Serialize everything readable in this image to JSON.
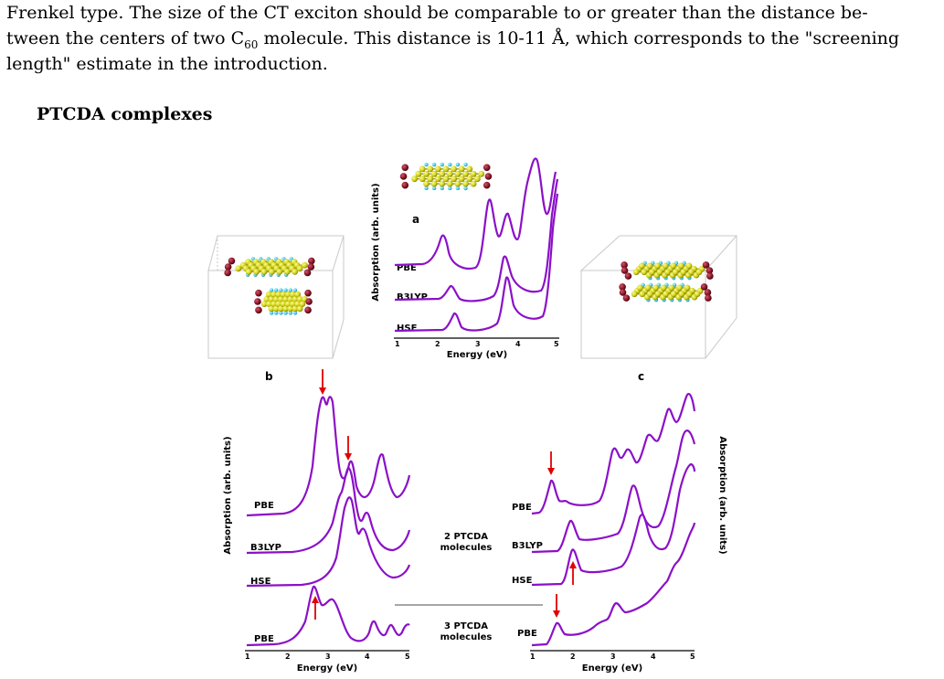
{
  "paragraph": {
    "line1": "Frenkel type. The size of the CT exciton should be comparable to or greater than the distance be-",
    "line2_pre": "tween the centers of two C",
    "line2_sub": "60",
    "line2_post": " molecule. This distance is 10-11 Å, which corresponds to the \"screening",
    "line3": "length\" estimate in the introduction."
  },
  "section_heading": "PTCDA complexes",
  "figure": {
    "panel_a": {
      "label": "a",
      "ylabel": "Absorption (arb. units)",
      "xlabel": "Energy (eV)",
      "xticks": [
        "1",
        "2",
        "3",
        "4",
        "5"
      ],
      "series": [
        "PBE",
        "B3LYP",
        "HSE"
      ]
    },
    "panel_b": {
      "label": "b",
      "ylabel": "Absorption (arb. units)",
      "xlabel": "Energy (eV)",
      "xticks": [
        "1",
        "2",
        "3",
        "4",
        "5"
      ],
      "series": [
        "PBE",
        "B3LYP",
        "HSE",
        "PBE"
      ]
    },
    "panel_c": {
      "label": "c",
      "ylabel": "Absorption (arb. units)",
      "xlabel": "Energy (eV)",
      "xticks": [
        "1",
        "2",
        "3",
        "4",
        "5"
      ],
      "series": [
        "PBE",
        "B3LYP",
        "HSE",
        "PBE"
      ]
    },
    "middle_labels": {
      "two_line1": "2 PTCDA",
      "two_line2": "molecules",
      "three_line1": "3 PTCDA",
      "three_line2": "molecules"
    },
    "colors": {
      "curve": "#8b10c8",
      "arrow": "#e00000",
      "carbon": "#d4d41a",
      "oxygen": "#7a0f1e",
      "hydrogen": "#3cc6e6"
    }
  }
}
